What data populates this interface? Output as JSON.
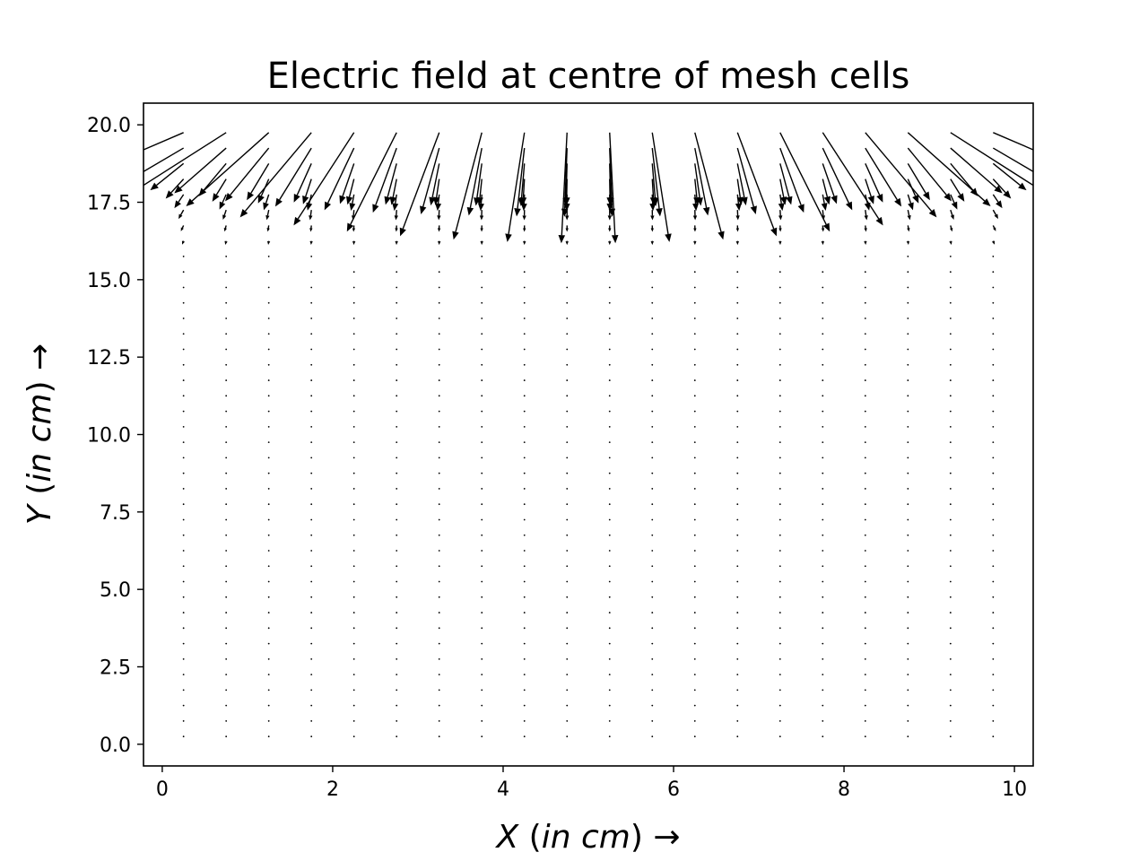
{
  "chart_data": {
    "type": "quiver",
    "title": "Electric field at centre of mesh cells",
    "xlabel": {
      "var": "X",
      "unit": "in cm",
      "arrow": "→"
    },
    "ylabel": {
      "var": "Y",
      "unit": "in cm",
      "arrow": "→"
    },
    "xlim": [
      -0.22,
      10.22
    ],
    "ylim": [
      -0.7,
      20.7
    ],
    "xticks": [
      0,
      2,
      4,
      6,
      8,
      10
    ],
    "xtick_labels": [
      "0",
      "2",
      "4",
      "6",
      "8",
      "10"
    ],
    "yticks": [
      0,
      2.5,
      5,
      7.5,
      10,
      12.5,
      15,
      17.5,
      20
    ],
    "ytick_labels": [
      "0.0",
      "2.5",
      "5.0",
      "7.5",
      "10.0",
      "12.5",
      "15.0",
      "17.5",
      "20.0"
    ],
    "grid": false,
    "color": "#000000",
    "mesh": {
      "x_centres": [
        0.25,
        0.75,
        1.25,
        1.75,
        2.25,
        2.75,
        3.25,
        3.75,
        4.25,
        4.75,
        5.25,
        5.75,
        6.25,
        6.75,
        7.25,
        7.75,
        8.25,
        8.75,
        9.25,
        9.75
      ],
      "y_start": 0.25,
      "y_step": 0.5,
      "y_count": 40
    },
    "field_description": "Field decays from top boundary; arrows point away from top and outward toward side walls"
  }
}
